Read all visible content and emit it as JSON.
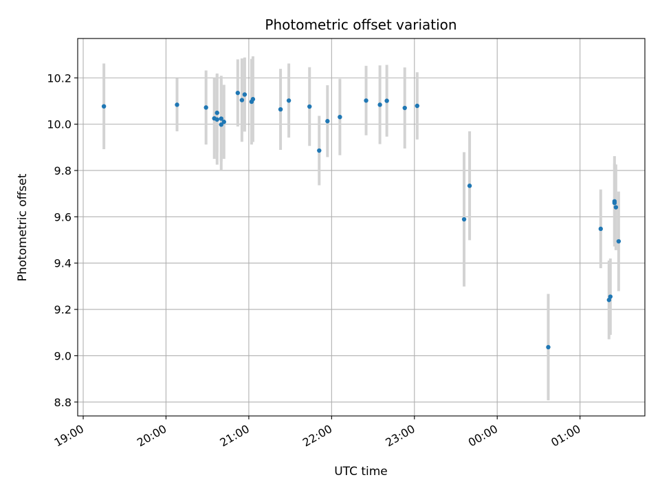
{
  "chart_data": {
    "type": "scatter",
    "title": "Photometric offset variation",
    "xlabel": "UTC time",
    "ylabel": "Photometric offset",
    "grid": true,
    "legend": "none",
    "x_ticks": [
      "19:00",
      "20:00",
      "21:00",
      "22:00",
      "23:00",
      "00:00",
      "01:00"
    ],
    "y_ticks": [
      "8.8",
      "9.0",
      "9.2",
      "9.4",
      "9.6",
      "9.8",
      "10.0",
      "10.2"
    ],
    "xlim": [
      "18:56",
      "01:47"
    ],
    "ylim": [
      8.74,
      10.37
    ],
    "colors": {
      "point": "#1f77b4",
      "errorbar": "#d3d3d3",
      "grid": "#b0b0b0"
    },
    "points": [
      {
        "t": "19:15",
        "y": 10.077,
        "err": 0.185
      },
      {
        "t": "20:08",
        "y": 10.084,
        "err": 0.115
      },
      {
        "t": "20:29",
        "y": 10.072,
        "err": 0.16
      },
      {
        "t": "20:35",
        "y": 10.025,
        "err": 0.175
      },
      {
        "t": "20:37",
        "y": 10.02,
        "err": 0.195
      },
      {
        "t": "20:37",
        "y": 10.049,
        "err": 0.17
      },
      {
        "t": "20:40",
        "y": 10.024,
        "err": 0.185
      },
      {
        "t": "20:40",
        "y": 9.998,
        "err": 0.195
      },
      {
        "t": "20:42",
        "y": 10.01,
        "err": 0.16
      },
      {
        "t": "20:52",
        "y": 10.135,
        "err": 0.145
      },
      {
        "t": "20:55",
        "y": 10.104,
        "err": 0.18
      },
      {
        "t": "20:57",
        "y": 10.128,
        "err": 0.16
      },
      {
        "t": "21:02",
        "y": 10.097,
        "err": 0.185
      },
      {
        "t": "21:03",
        "y": 10.108,
        "err": 0.185
      },
      {
        "t": "21:23",
        "y": 10.064,
        "err": 0.175
      },
      {
        "t": "21:29",
        "y": 10.102,
        "err": 0.16
      },
      {
        "t": "21:44",
        "y": 10.076,
        "err": 0.17
      },
      {
        "t": "21:51",
        "y": 9.886,
        "err": 0.15
      },
      {
        "t": "21:57",
        "y": 10.013,
        "err": 0.155
      },
      {
        "t": "22:06",
        "y": 10.031,
        "err": 0.165
      },
      {
        "t": "22:25",
        "y": 10.102,
        "err": 0.15
      },
      {
        "t": "22:35",
        "y": 10.084,
        "err": 0.17
      },
      {
        "t": "22:40",
        "y": 10.101,
        "err": 0.155
      },
      {
        "t": "22:53",
        "y": 10.07,
        "err": 0.175
      },
      {
        "t": "23:02",
        "y": 10.079,
        "err": 0.145
      },
      {
        "t": "23:36",
        "y": 9.589,
        "err": 0.29
      },
      {
        "t": "23:40",
        "y": 9.734,
        "err": 0.235
      },
      {
        "t": "00:37",
        "y": 9.037,
        "err": 0.23
      },
      {
        "t": "01:15",
        "y": 9.548,
        "err": 0.17
      },
      {
        "t": "01:21",
        "y": 9.241,
        "err": 0.17
      },
      {
        "t": "01:22",
        "y": 9.255,
        "err": 0.165
      },
      {
        "t": "01:25",
        "y": 9.667,
        "err": 0.195
      },
      {
        "t": "01:25",
        "y": 9.66,
        "err": 0.17
      },
      {
        "t": "01:26",
        "y": 9.641,
        "err": 0.185
      },
      {
        "t": "01:28",
        "y": 9.494,
        "err": 0.215
      }
    ]
  }
}
